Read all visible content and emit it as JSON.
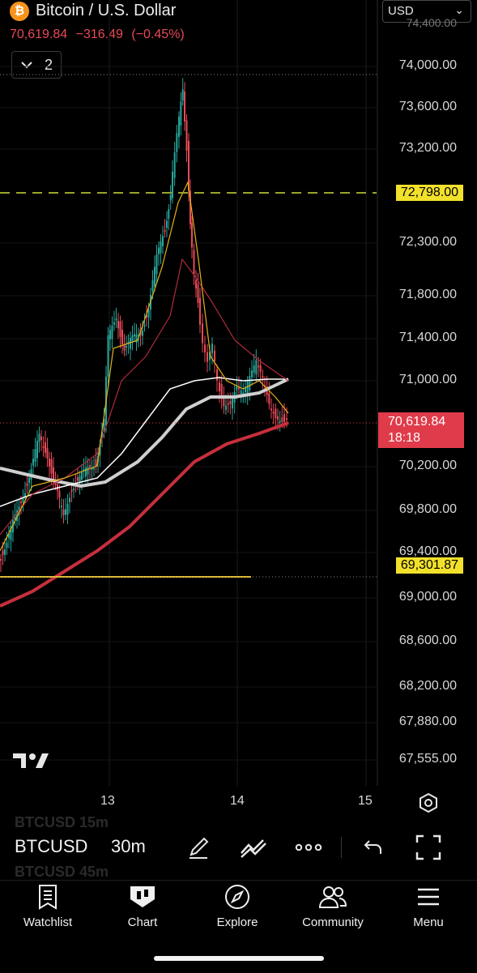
{
  "header": {
    "title": "Bitcoin / U.S. Dollar",
    "logo_glyph": "₿",
    "price": "70,619.84",
    "change": "−316.49",
    "change_pct": "(−0.45%)",
    "indicator_count": "2",
    "currency": "USD"
  },
  "colors": {
    "down": "#e84a57",
    "up": "#26a69a",
    "price_tag": "#f2e12b",
    "ma_long": "#c62f3c",
    "ma_mid": "#d8d8d8"
  },
  "y_axis": {
    "ticks": [
      "74,000.00",
      "73,600.00",
      "73,200.00",
      "72,300.00",
      "71,800.00",
      "71,400.00",
      "71,000.00",
      "70,200.00",
      "69,800.00",
      "69,400.00",
      "69,000.00",
      "68,600.00",
      "68,200.00",
      "67,880.00",
      "67,555.00"
    ],
    "top_partial": "74,400.00"
  },
  "x_axis": {
    "ticks": [
      "13",
      "14",
      "15"
    ]
  },
  "markers": {
    "upper_level": "72,798.00",
    "lower_level": "69,301.87",
    "last_price": "70,619.84",
    "countdown": "18:18"
  },
  "toolbar": {
    "symbol": "BTCUSD",
    "interval": "30m",
    "ghost_above": "BTCUSD   15m",
    "ghost_below": "BTCUSD   45m",
    "icons": [
      "pen-icon",
      "trendline-icon",
      "more-icon",
      "undo-icon",
      "fullscreen-icon"
    ]
  },
  "tabs": [
    {
      "label": "Watchlist",
      "icon": "watchlist-icon"
    },
    {
      "label": "Chart",
      "icon": "chart-icon"
    },
    {
      "label": "Explore",
      "icon": "compass-icon"
    },
    {
      "label": "Community",
      "icon": "community-icon"
    },
    {
      "label": "Menu",
      "icon": "menu-icon"
    }
  ]
}
